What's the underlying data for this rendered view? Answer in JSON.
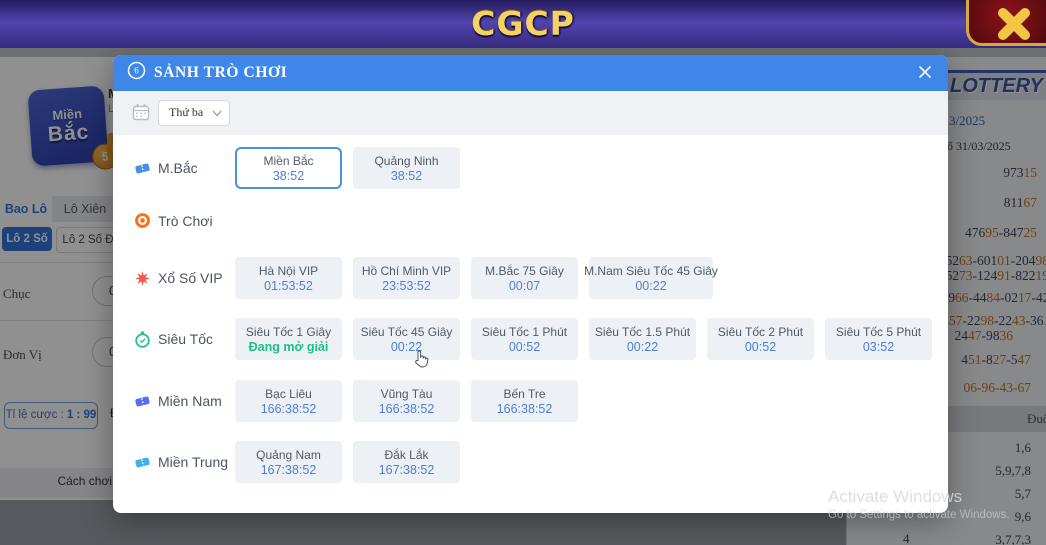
{
  "header": {
    "title": "CGCP"
  },
  "colors": {
    "header_purple": "#3a2b85",
    "brand_gold": "#f3d26a",
    "modal_blue": "#3e87e8",
    "timer_blue": "#4d80d6",
    "open_green": "#1fbf84",
    "selected_border": "#4a90e2",
    "accent_orange": "#c2701d"
  },
  "watermark": {
    "line1": "Activate Windows",
    "line2": "Go to Settings to activate Windows."
  },
  "modal": {
    "title": "SẢNH TRÒ CHƠI",
    "filter": {
      "value": "Thứ ba"
    },
    "rows": [
      {
        "label": "M.Bắc",
        "icon": "ticket-blue",
        "games": [
          {
            "name": "Miền Bắc",
            "timer": "38:52",
            "selected": true
          },
          {
            "name": "Quảng Ninh",
            "timer": "38:52"
          }
        ]
      },
      {
        "label": "Trò Chơi",
        "icon": "target-orange",
        "games": []
      },
      {
        "label": "Xổ Số VIP",
        "icon": "star-red",
        "games": [
          {
            "name": "Hà Nội VIP",
            "timer": "01:53:52"
          },
          {
            "name": "Hồ Chí Minh VIP",
            "timer": "23:53:52"
          },
          {
            "name": "M.Bắc 75 Giây",
            "timer": "00:07"
          },
          {
            "name": "M.Nam Siêu Tốc 45 Giây",
            "timer": "00:22",
            "wide": true
          }
        ]
      },
      {
        "label": "Siêu Tốc",
        "icon": "stopwatch-green",
        "games": [
          {
            "name": "Siêu Tốc 1 Giây",
            "status": "Đang mở giải"
          },
          {
            "name": "Siêu Tốc 45 Giây",
            "timer": "00:22"
          },
          {
            "name": "Siêu Tốc 1 Phút",
            "timer": "00:52"
          },
          {
            "name": "Siêu Tốc 1.5 Phút",
            "timer": "00:22"
          },
          {
            "name": "Siêu Tốc 2 Phút",
            "timer": "00:52"
          },
          {
            "name": "Siêu Tốc 5 Phút",
            "timer": "03:52"
          }
        ]
      },
      {
        "label": "Miền Nam",
        "icon": "ticket-indigo",
        "games": [
          {
            "name": "Bạc Liêu",
            "timer": "166:38:52"
          },
          {
            "name": "Vũng Tàu",
            "timer": "166:38:52"
          },
          {
            "name": "Bến Tre",
            "timer": "166:38:52"
          }
        ]
      },
      {
        "label": "Miền Trung",
        "icon": "ticket-lightblue",
        "games": [
          {
            "name": "Quảng Nam",
            "timer": "167:38:52"
          },
          {
            "name": "Đắk Lắk",
            "timer": "167:38:52"
          }
        ]
      }
    ]
  },
  "background": {
    "left": {
      "logo": {
        "line1": "Miền",
        "line2": "Bắc",
        "badge": "5"
      },
      "partial_title": "Mi",
      "partial_sub": "Lô",
      "partial_button": "S",
      "tabs": [
        {
          "label": "Bao Lô",
          "active": true
        },
        {
          "label": "Lô Xiên",
          "active": false
        }
      ],
      "pills": [
        {
          "label": "Lô 2 Số",
          "active": true
        },
        {
          "label": "Lô 2 Số Đ",
          "active": false
        }
      ],
      "fields": [
        {
          "label": "Chục",
          "value": "0"
        },
        {
          "label": "Đơn Vị",
          "value": "0"
        }
      ],
      "odds_label": "Tỉ lệ cược :",
      "odds_value": "1 : 99",
      "partial_fragment": "Đ",
      "table_header": "Cách chơi"
    },
    "right": {
      "banner": "LOTTERY",
      "date_line": "3/2025",
      "draw_line": "ổ 31/03/2025",
      "result_lines": [
        {
          "segments": [
            {
              "t": "973"
            },
            {
              "t": "15",
              "a": true
            }
          ]
        },
        {
          "segments": [
            {
              "t": "811"
            },
            {
              "t": "67",
              "a": true
            }
          ]
        },
        {
          "segments": [
            {
              "t": "476"
            },
            {
              "t": "95",
              "a": true
            },
            {
              "t": "-847"
            },
            {
              "t": "25",
              "a": true
            }
          ]
        },
        {
          "segments": [
            {
              "t": "052"
            },
            {
              "t": "63",
              "a": true
            },
            {
              "t": "-601"
            },
            {
              "t": "01",
              "a": true
            },
            {
              "t": "-204"
            },
            {
              "t": "98",
              "a": true
            }
          ]
        },
        {
          "segments": [
            {
              "t": "752"
            },
            {
              "t": "73",
              "a": true
            },
            {
              "t": "-124"
            },
            {
              "t": "91",
              "a": true
            },
            {
              "t": "-822"
            },
            {
              "t": "19",
              "a": true
            }
          ]
        },
        {
          "segments": [
            {
              "t": "49"
            },
            {
              "t": "66",
              "a": true
            },
            {
              "t": "-44"
            },
            {
              "t": "84",
              "a": true
            },
            {
              "t": "-02"
            },
            {
              "t": "17",
              "a": true
            },
            {
              "t": "-42"
            },
            {
              "t": "39",
              "a": true
            }
          ]
        },
        {
          "segments": [
            {
              "t": "88"
            },
            {
              "t": "57",
              "a": true
            },
            {
              "t": "-22"
            },
            {
              "t": "98",
              "a": true
            },
            {
              "t": "-22"
            },
            {
              "t": "43",
              "a": true
            },
            {
              "t": "-36"
            },
            {
              "t": "18",
              "a": true
            }
          ]
        },
        {
          "segments": [
            {
              "t": "24"
            },
            {
              "t": "47",
              "a": true
            },
            {
              "t": "-98"
            },
            {
              "t": "36",
              "a": true
            }
          ]
        },
        {
          "segments": [
            {
              "t": "4"
            },
            {
              "t": "51",
              "a": true
            },
            {
              "t": "-8"
            },
            {
              "t": "27",
              "a": true
            },
            {
              "t": "-5"
            },
            {
              "t": "47",
              "a": true
            }
          ]
        },
        {
          "segments": [
            {
              "t": "06-96-43-67",
              "a": true
            }
          ]
        }
      ],
      "tail_table": {
        "header": "Đuôi",
        "rows": [
          "1,6",
          "5,9,7,8",
          "5,7",
          "9,6",
          "3,7,7,3"
        ],
        "left_value": "4"
      }
    }
  }
}
